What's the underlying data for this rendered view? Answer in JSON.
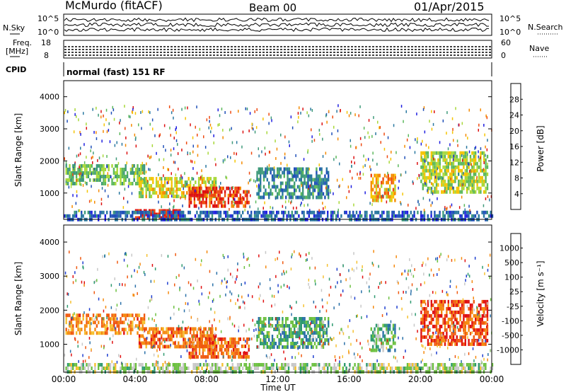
{
  "header": {
    "station": "McMurdo (fitACF)",
    "beam": "Beam 00",
    "date": "01/Apr/2015"
  },
  "top_panels": {
    "nsky_label": "N.Sky",
    "nsearch_label": "N.Search",
    "noise_ticks": [
      "10^5",
      "10^0"
    ],
    "freq_label_line1": "Freq.",
    "freq_label_line2": "[MHz]",
    "freq_ticks": [
      "18",
      "8"
    ],
    "nave_label": "Nave",
    "nave_ticks": [
      "60",
      "0"
    ],
    "cpid_label": "CPID",
    "cpid_text": "normal (fast) 151 RF"
  },
  "chart_data": [
    {
      "type": "heatmap",
      "name": "power",
      "ylabel": "Slant Range [km]",
      "y_ticks": [
        "4000",
        "3000",
        "2000",
        "1000"
      ],
      "ylim": [
        180,
        4500
      ],
      "xlim_hours": [
        0,
        24
      ],
      "colorbar_label": "Power [dB]",
      "colorbar_ticks": [
        "28",
        "24",
        "20",
        "16",
        "12",
        "8",
        "4"
      ],
      "colorbar_colors": [
        "#1f1fe0",
        "#1f4fb8",
        "#2a78a0",
        "#3f9a7a",
        "#5cb85c",
        "#a8d83a",
        "#f5c400",
        "#f58a00",
        "#ee4a10",
        "#dd1010"
      ],
      "regions": [
        {
          "t0": 0.1,
          "t1": 4.5,
          "r0": 1300,
          "r1": 1900,
          "level": 0.45
        },
        {
          "t0": 4.2,
          "t1": 8.5,
          "r0": 900,
          "r1": 1500,
          "level": 0.6
        },
        {
          "t0": 7.0,
          "t1": 10.4,
          "r0": 600,
          "r1": 1200,
          "level": 0.9
        },
        {
          "t0": 4.0,
          "t1": 6.5,
          "r0": 200,
          "r1": 500,
          "level": 0.95
        },
        {
          "t0": 10.8,
          "t1": 14.8,
          "r0": 900,
          "r1": 1800,
          "level": 0.3
        },
        {
          "t0": 17.2,
          "t1": 18.6,
          "r0": 800,
          "r1": 1600,
          "level": 0.7
        },
        {
          "t0": 20.0,
          "t1": 23.8,
          "r0": 1000,
          "r1": 2300,
          "level": 0.55
        },
        {
          "t0": 0.0,
          "t1": 24.0,
          "r0": 200,
          "r1": 450,
          "level": 0.2
        }
      ]
    },
    {
      "type": "heatmap",
      "name": "velocity",
      "ylabel": "Slant Range [km]",
      "xlabel": "Time UT",
      "x_ticks": [
        "00:00",
        "04:00",
        "08:00",
        "12:00",
        "16:00",
        "20:00",
        "00:00"
      ],
      "y_ticks": [
        "4000",
        "3000",
        "2000",
        "1000"
      ],
      "ylim": [
        180,
        4500
      ],
      "xlim_hours": [
        0,
        24
      ],
      "colorbar_label": "Velocity [m s⁻¹]",
      "colorbar_ticks": [
        "1000",
        "500",
        "100",
        "25",
        "-25",
        "-100",
        "-500",
        "-1000"
      ],
      "colorbar_colors": [
        "#1f3fd0",
        "#2a70a8",
        "#2f9a70",
        "#6cc040",
        "#c8c8c8",
        "#f5c030",
        "#f58a10",
        "#f05a10",
        "#e01010"
      ],
      "regions": [
        {
          "t0": 0.1,
          "t1": 4.5,
          "r0": 1300,
          "r1": 1900,
          "level": 0.75
        },
        {
          "t0": 4.2,
          "t1": 8.5,
          "r0": 900,
          "r1": 1500,
          "level": 0.78
        },
        {
          "t0": 7.0,
          "t1": 10.4,
          "r0": 600,
          "r1": 1200,
          "level": 0.8
        },
        {
          "t0": 10.8,
          "t1": 14.8,
          "r0": 900,
          "r1": 1800,
          "level": 0.3
        },
        {
          "t0": 17.2,
          "t1": 18.6,
          "r0": 800,
          "r1": 1600,
          "level": 0.35
        },
        {
          "t0": 20.0,
          "t1": 23.8,
          "r0": 1000,
          "r1": 2300,
          "level": 0.85
        },
        {
          "t0": 0.0,
          "t1": 24.0,
          "r0": 200,
          "r1": 450,
          "level": 0.45
        }
      ]
    }
  ]
}
